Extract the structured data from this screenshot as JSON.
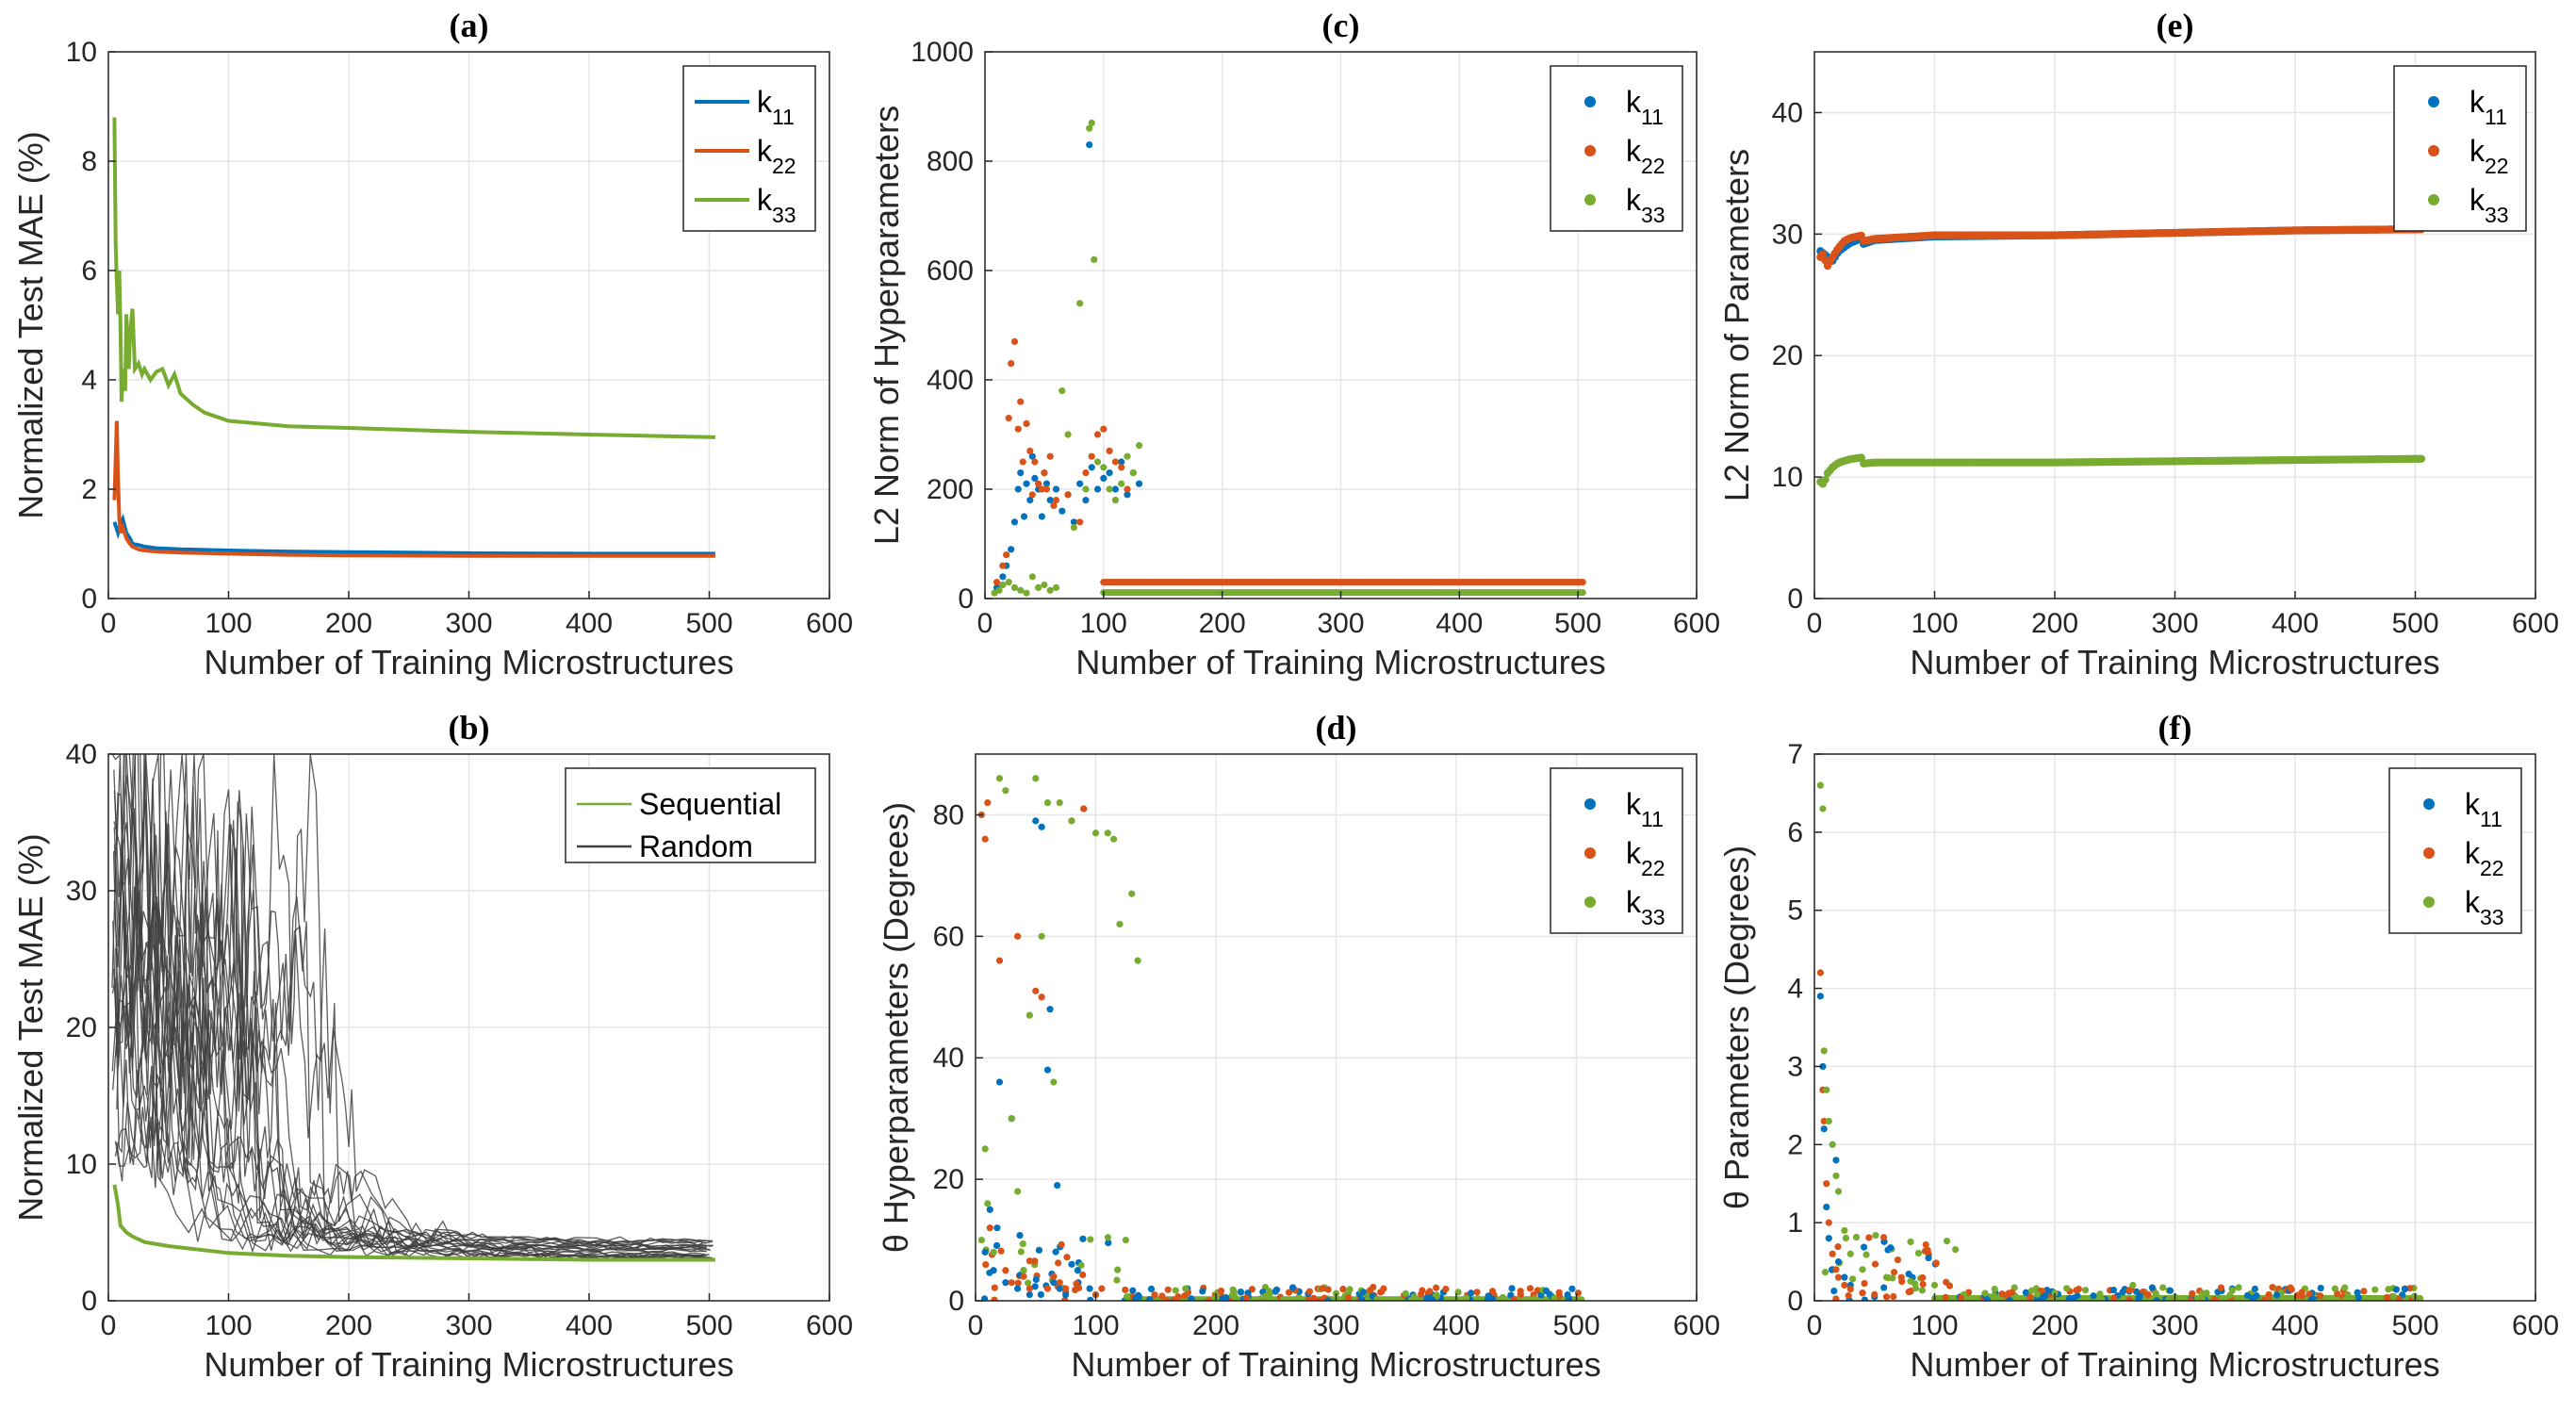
{
  "colors": {
    "k11": "#0072BD",
    "k22": "#D95319",
    "k33": "#77AC30",
    "sequential": "#77AC30",
    "random": "#404040",
    "grid": "#e6e6e6",
    "axis": "#262626"
  },
  "chart_data": [
    {
      "id": "a",
      "type": "line",
      "title": "(a)",
      "xlabel": "Number of Training Microstructures",
      "ylabel": "Normalized Test MAE (%)",
      "xlim": [
        0,
        600
      ],
      "ylim": [
        0,
        10
      ],
      "xticks": [
        0,
        100,
        200,
        300,
        400,
        500,
        600
      ],
      "yticks": [
        0,
        2,
        4,
        6,
        8,
        10
      ],
      "grid": true,
      "legend": "top-right",
      "series": [
        {
          "name": "k11",
          "key": "k11",
          "x": [
            5,
            8,
            10,
            12,
            15,
            18,
            20,
            25,
            30,
            40,
            60,
            100,
            150,
            200,
            300,
            400,
            505
          ],
          "y": [
            1.4,
            1.2,
            1.35,
            1.45,
            1.2,
            1.1,
            1.0,
            0.98,
            0.95,
            0.92,
            0.9,
            0.88,
            0.86,
            0.85,
            0.83,
            0.82,
            0.82
          ]
        },
        {
          "name": "k22",
          "key": "k22",
          "x": [
            5,
            7,
            8,
            9,
            10,
            12,
            15,
            18,
            20,
            25,
            30,
            40,
            60,
            100,
            150,
            200,
            300,
            400,
            505
          ],
          "y": [
            1.8,
            3.25,
            2.2,
            1.5,
            1.2,
            1.3,
            1.1,
            1.0,
            0.95,
            0.9,
            0.88,
            0.86,
            0.84,
            0.82,
            0.8,
            0.79,
            0.78,
            0.78,
            0.78
          ]
        },
        {
          "name": "k33",
          "key": "k33",
          "x": [
            5,
            6,
            7,
            8,
            9,
            10,
            11,
            12,
            14,
            15,
            17,
            18,
            20,
            22,
            25,
            28,
            30,
            35,
            40,
            45,
            50,
            55,
            60,
            70,
            80,
            100,
            150,
            200,
            300,
            400,
            505
          ],
          "y": [
            8.8,
            6.5,
            5.8,
            5.2,
            6.0,
            5.0,
            3.6,
            4.2,
            3.8,
            5.2,
            4.2,
            4.8,
            5.3,
            4.2,
            4.3,
            4.1,
            4.2,
            4.0,
            4.15,
            4.2,
            3.9,
            4.1,
            3.75,
            3.55,
            3.4,
            3.25,
            3.15,
            3.12,
            3.05,
            3.0,
            2.95
          ]
        }
      ]
    },
    {
      "id": "b",
      "type": "line",
      "title": "(b)",
      "xlabel": "Number of Training Microstructures",
      "ylabel": "Normalized Test MAE (%)",
      "xlim": [
        0,
        600
      ],
      "ylim": [
        0,
        40
      ],
      "xticks": [
        0,
        100,
        200,
        300,
        400,
        500,
        600
      ],
      "yticks": [
        0,
        10,
        20,
        30,
        40
      ],
      "grid": true,
      "legend": "top-right",
      "series": [
        {
          "name": "Sequential",
          "key": "sequential",
          "x": [
            5,
            8,
            10,
            15,
            20,
            30,
            50,
            100,
            150,
            200,
            300,
            400,
            505
          ],
          "y": [
            8.5,
            7.0,
            5.5,
            5.0,
            4.7,
            4.3,
            4.0,
            3.5,
            3.3,
            3.2,
            3.1,
            3.0,
            3.0
          ]
        },
        {
          "name": "Random",
          "key": "random",
          "random_count": 22,
          "seed": 7,
          "x_end": 505,
          "y_start_range": [
            10,
            40
          ],
          "y_end_range": [
            3.1,
            4.5
          ]
        }
      ]
    },
    {
      "id": "c",
      "type": "scatter",
      "title": "(c)",
      "xlabel": "Number of Training Microstructures",
      "ylabel": "L2 Norm of Hyperparameters",
      "xlim": [
        0,
        600
      ],
      "ylim": [
        0,
        1000
      ],
      "xticks": [
        0,
        100,
        200,
        300,
        400,
        500,
        600
      ],
      "yticks": [
        0,
        200,
        400,
        600,
        800,
        1000
      ],
      "grid": true,
      "legend": "top-right",
      "series": [
        {
          "name": "k11",
          "key": "k11",
          "x": [
            10,
            15,
            18,
            22,
            25,
            28,
            30,
            33,
            35,
            38,
            40,
            42,
            45,
            48,
            50,
            52,
            55,
            60,
            65,
            70,
            75,
            80,
            85,
            88,
            90,
            95,
            100,
            105,
            110,
            115,
            120,
            125,
            130
          ],
          "y": [
            20,
            40,
            60,
            90,
            140,
            200,
            230,
            150,
            210,
            180,
            260,
            220,
            200,
            150,
            230,
            210,
            180,
            200,
            160,
            190,
            140,
            210,
            180,
            830,
            240,
            200,
            220,
            230,
            200,
            250,
            190,
            230,
            210
          ]
        },
        {
          "name": "k22",
          "key": "k22",
          "x": [
            10,
            15,
            18,
            20,
            22,
            25,
            28,
            30,
            32,
            35,
            38,
            40,
            42,
            45,
            48,
            50,
            52,
            55,
            58,
            60,
            70,
            80,
            85,
            90,
            95,
            100,
            105,
            110,
            115,
            120
          ],
          "y": [
            30,
            60,
            80,
            330,
            430,
            470,
            310,
            360,
            250,
            320,
            270,
            190,
            250,
            210,
            200,
            230,
            200,
            260,
            170,
            180,
            190,
            140,
            230,
            260,
            300,
            310,
            270,
            250,
            240,
            200
          ]
        },
        {
          "name": "k33",
          "key": "k33",
          "x": [
            8,
            12,
            15,
            20,
            25,
            30,
            35,
            40,
            45,
            50,
            55,
            60,
            65,
            70,
            75,
            80,
            85,
            88,
            90,
            92,
            95,
            100,
            105,
            110,
            115,
            120,
            125,
            130
          ],
          "y": [
            10,
            15,
            25,
            30,
            20,
            15,
            10,
            40,
            20,
            25,
            15,
            20,
            380,
            300,
            130,
            540,
            200,
            860,
            870,
            620,
            250,
            240,
            200,
            180,
            210,
            260,
            230,
            280
          ]
        }
      ],
      "plateau": [
        {
          "key": "k22",
          "x_from": 100,
          "x_to": 505,
          "y": 30
        },
        {
          "key": "k33",
          "x_from": 100,
          "x_to": 505,
          "y": 11
        }
      ]
    },
    {
      "id": "d",
      "type": "scatter",
      "title": "(d)",
      "xlabel": "Number of Training Microstructures",
      "ylabel": "θ Hyperparameters (Degrees)",
      "xlim": [
        0,
        600
      ],
      "ylim": [
        0,
        90
      ],
      "xticks": [
        0,
        100,
        200,
        300,
        400,
        500,
        600
      ],
      "yticks": [
        0,
        20,
        40,
        60,
        80
      ],
      "grid": true,
      "legend": "top-right",
      "series": [
        {
          "name": "k11",
          "key": "k11",
          "x": [
            8,
            12,
            15,
            18,
            20,
            25,
            30,
            35,
            40,
            45,
            50,
            55,
            60,
            62,
            65,
            68,
            70,
            75,
            80,
            85,
            90,
            95,
            100
          ],
          "y": [
            8,
            15,
            5,
            12,
            36,
            3,
            30,
            2,
            5,
            1,
            79,
            78,
            38,
            48,
            3,
            19,
            2,
            1,
            6,
            5,
            81,
            2,
            1
          ]
        },
        {
          "name": "k22",
          "key": "k22",
          "x": [
            5,
            8,
            10,
            12,
            15,
            20,
            25,
            30,
            35,
            40,
            45,
            50,
            55,
            60,
            65,
            70,
            75,
            80,
            90,
            100,
            105
          ],
          "y": [
            80,
            76,
            82,
            12,
            8,
            56,
            5,
            3,
            60,
            4,
            2,
            51,
            50,
            2,
            4,
            3,
            2,
            79,
            81,
            1,
            2
          ]
        },
        {
          "name": "k33",
          "key": "k33",
          "x": [
            5,
            8,
            10,
            15,
            20,
            25,
            30,
            35,
            40,
            45,
            50,
            55,
            60,
            65,
            70,
            80,
            100,
            110,
            115,
            120,
            125,
            130,
            135
          ],
          "y": [
            10,
            25,
            16,
            8,
            86,
            84,
            30,
            18,
            5,
            47,
            86,
            60,
            82,
            36,
            82,
            79,
            77,
            77,
            76,
            62,
            10,
            67,
            56
          ]
        }
      ],
      "plateau": [
        {
          "key": "k33",
          "x_from": 130,
          "x_to": 505,
          "y": 0.2
        }
      ]
    },
    {
      "id": "e",
      "type": "scatter",
      "title": "(e)",
      "xlabel": "Number of Training Microstructures",
      "ylabel": "L2 Norm of Parameters",
      "xlim": [
        0,
        600
      ],
      "ylim": [
        0,
        45
      ],
      "xticks": [
        0,
        100,
        200,
        300,
        400,
        500,
        600
      ],
      "yticks": [
        0,
        10,
        20,
        30,
        40
      ],
      "grid": true,
      "legend": "top-right",
      "series": [
        {
          "name": "k11",
          "key": "k11",
          "x": [
            5,
            10,
            15,
            20,
            30,
            50,
            100,
            200,
            300,
            400,
            505
          ],
          "y": [
            28.5,
            28.0,
            27.5,
            28.2,
            28.8,
            29.5,
            29.8,
            29.9,
            30.1,
            30.3,
            30.4
          ]
        },
        {
          "name": "k22",
          "key": "k22",
          "x": [
            5,
            8,
            10,
            15,
            20,
            25,
            30,
            50,
            100,
            200,
            300,
            400,
            505
          ],
          "y": [
            28.0,
            28.3,
            27.0,
            27.8,
            28.5,
            29.0,
            29.2,
            29.6,
            29.9,
            29.9,
            30.1,
            30.3,
            30.4
          ]
        },
        {
          "name": "k33",
          "key": "k33",
          "x": [
            5,
            8,
            10,
            15,
            20,
            30,
            50,
            100,
            200,
            300,
            400,
            505
          ],
          "y": [
            9.5,
            9.2,
            10.0,
            10.5,
            10.8,
            11.0,
            11.2,
            11.2,
            11.2,
            11.3,
            11.4,
            11.5
          ]
        }
      ],
      "dense_lines": true
    },
    {
      "id": "f",
      "type": "scatter",
      "title": "(f)",
      "xlabel": "Number of Training Microstructures",
      "ylabel": "θ Parameters (Degrees)",
      "xlim": [
        0,
        600
      ],
      "ylim": [
        0,
        7
      ],
      "xticks": [
        0,
        100,
        200,
        300,
        400,
        500,
        600
      ],
      "yticks": [
        0,
        1,
        2,
        3,
        4,
        5,
        6,
        7
      ],
      "grid": true,
      "legend": "top-right",
      "series": [
        {
          "name": "k11",
          "key": "k11",
          "x": [
            5,
            7,
            8,
            10,
            12,
            15,
            18,
            20,
            25,
            30,
            40,
            50
          ],
          "y": [
            3.9,
            3.0,
            2.2,
            1.2,
            0.8,
            0.4,
            1.8,
            0.5,
            0.3,
            0.2,
            0.1,
            0.05
          ]
        },
        {
          "name": "k22",
          "key": "k22",
          "x": [
            5,
            7,
            8,
            10,
            12,
            15,
            18,
            20,
            25,
            30,
            40,
            50,
            60
          ],
          "y": [
            4.2,
            2.7,
            2.3,
            1.5,
            1.0,
            0.6,
            0.4,
            0.3,
            0.2,
            0.15,
            0.1,
            0.08,
            0.05
          ]
        },
        {
          "name": "k33",
          "key": "k33",
          "x": [
            5,
            7,
            8,
            10,
            12,
            15,
            18,
            20,
            25,
            30,
            40,
            60,
            80,
            100,
            150,
            200,
            265,
            300
          ],
          "y": [
            6.6,
            6.3,
            3.2,
            2.7,
            2.3,
            2.0,
            1.6,
            1.4,
            0.9,
            0.6,
            0.4,
            0.3,
            0.25,
            0.2,
            0.15,
            0.1,
            0.2,
            0.05
          ]
        }
      ],
      "plateau": [
        {
          "key": "k33",
          "x_from": 100,
          "x_to": 505,
          "y": 0.03
        }
      ]
    }
  ]
}
